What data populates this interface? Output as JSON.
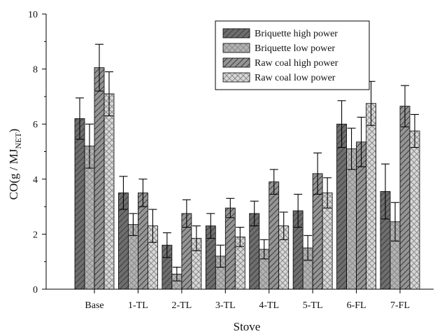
{
  "chart_data": {
    "type": "bar",
    "title": "",
    "xlabel": "Stove",
    "ylabel": "CO(g / MJ",
    "ylabel_sub": "NET",
    "ylabel_end": ")",
    "ylim": [
      0,
      10
    ],
    "yticks": [
      "0",
      "2",
      "4",
      "6",
      "8",
      "10"
    ],
    "categories": [
      "Base",
      "1-TL",
      "2-TL",
      "3-TL",
      "4-TL",
      "5-TL",
      "6-FL",
      "7-FL"
    ],
    "legend_position": "top-right",
    "grid": false,
    "error_bars": true,
    "series": [
      {
        "name": "Briquette high power",
        "color": "#6e6e6e",
        "pattern": "forward-hatch",
        "values": [
          6.2,
          3.5,
          1.6,
          2.3,
          2.75,
          2.85,
          6.0,
          3.55
        ],
        "errors": [
          0.75,
          0.6,
          0.45,
          0.45,
          0.45,
          0.6,
          0.85,
          1.0
        ]
      },
      {
        "name": "Briquette low power",
        "color": "#b3b3b3",
        "pattern": "cross-hatch",
        "values": [
          5.2,
          2.35,
          0.55,
          1.2,
          1.45,
          1.5,
          5.1,
          2.45
        ],
        "errors": [
          0.8,
          0.4,
          0.25,
          0.4,
          0.35,
          0.45,
          0.75,
          0.7
        ]
      },
      {
        "name": "Raw coal high power",
        "color": "#959595",
        "pattern": "forward-hatch",
        "values": [
          8.05,
          3.5,
          2.75,
          2.95,
          3.9,
          4.2,
          5.35,
          6.65
        ],
        "errors": [
          0.85,
          0.5,
          0.5,
          0.35,
          0.45,
          0.75,
          0.9,
          0.75
        ]
      },
      {
        "name": "Raw coal low power",
        "color": "#d8d8d8",
        "pattern": "cross-hatch",
        "values": [
          7.1,
          2.3,
          1.85,
          1.9,
          2.3,
          3.5,
          6.75,
          5.75
        ],
        "errors": [
          0.8,
          0.6,
          0.45,
          0.35,
          0.5,
          0.55,
          0.8,
          0.6
        ]
      }
    ]
  }
}
